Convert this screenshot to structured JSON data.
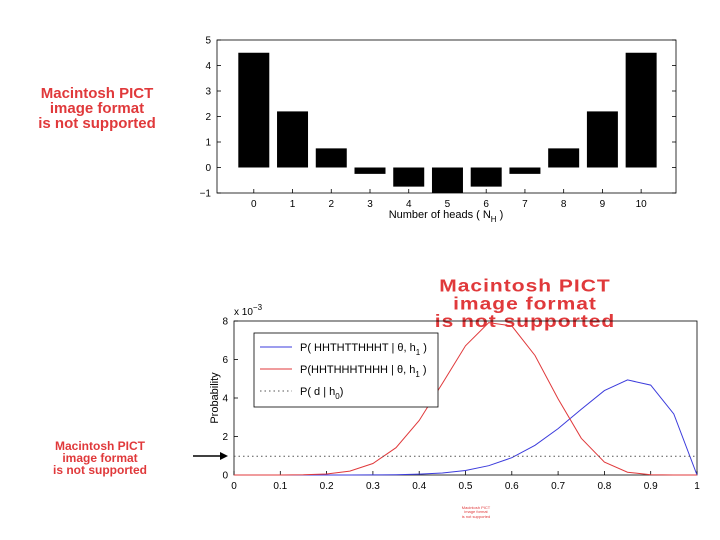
{
  "pict_placeholders": [
    "Macintosh PICT\nimage format\nis not supported",
    "Macintosh PICT\nimage format\nis not supported",
    "Macintosh PICT\nimage format\nis not supported",
    "Macintosh PICT\nimage format\nis not supported"
  ],
  "chart_data": [
    {
      "type": "bar",
      "categories": [
        "0",
        "1",
        "2",
        "3",
        "4",
        "5",
        "6",
        "7",
        "8",
        "9",
        "10"
      ],
      "values": [
        4.5,
        2.2,
        0.75,
        -0.25,
        -0.75,
        -1.0,
        -0.75,
        -0.25,
        0.75,
        2.2,
        4.5
      ],
      "ylim": [
        -1,
        5
      ],
      "yticks": [
        "5",
        "4",
        "3",
        "2",
        "1",
        "0",
        "−1"
      ],
      "xlabel": "Number of heads ( N",
      "xlabel_sub": "H",
      "xlabel_end": " )",
      "bar_color": "#000000",
      "grid": false
    },
    {
      "type": "line",
      "xlim": [
        0,
        1
      ],
      "ylim": [
        0,
        8
      ],
      "xticks": [
        "0",
        "0.1",
        "0.2",
        "0.3",
        "0.4",
        "0.5",
        "0.6",
        "0.7",
        "0.8",
        "0.9",
        "1"
      ],
      "yticks": [
        "8",
        "6",
        "4",
        "2",
        "0"
      ],
      "yscale_label": "x 10",
      "yscale_exp": "−3",
      "ylabel": "Probability",
      "legend_position": "top-left",
      "series": [
        {
          "name": "P( HHTHTTHHHT | θ, h",
          "name_sub": "1",
          "name_end": " )",
          "color": "#3b3bdc",
          "style": "solid",
          "x": [
            0,
            0.05,
            0.1,
            0.15,
            0.2,
            0.25,
            0.3,
            0.35,
            0.4,
            0.45,
            0.5,
            0.55,
            0.6,
            0.65,
            0.7,
            0.75,
            0.8,
            0.85,
            0.9,
            0.95,
            1
          ],
          "y": [
            0,
            0,
            0,
            0,
            0.0003,
            0.001,
            0.005,
            0.016,
            0.045,
            0.106,
            0.236,
            0.483,
            0.897,
            1.542,
            2.411,
            3.417,
            4.383,
            4.942,
            4.669,
            3.169,
            0
          ]
        },
        {
          "name": "P(HHTHHHTHHH | θ, h",
          "name_sub": "1",
          "name_end": " )",
          "color": "#e0393b",
          "style": "solid",
          "x": [
            0,
            0.05,
            0.1,
            0.15,
            0.2,
            0.25,
            0.3,
            0.35,
            0.4,
            0.45,
            0.5,
            0.55,
            0.6,
            0.65,
            0.7,
            0.75,
            0.8,
            0.85,
            0.9,
            0.95,
            1
          ],
          "y": [
            0,
            0,
            0.001,
            0.009,
            0.052,
            0.202,
            0.595,
            1.417,
            2.829,
            4.759,
            6.714,
            7.918,
            7.743,
            6.208,
            3.955,
            1.908,
            0.671,
            0.143,
            0.015,
            0,
            0
          ]
        },
        {
          "name": "P( d | h",
          "name_sub": "0",
          "name_end": ")",
          "color": "#555555",
          "style": "dotted",
          "x": [
            0,
            1
          ],
          "y": [
            0.977,
            0.977
          ]
        }
      ]
    }
  ]
}
